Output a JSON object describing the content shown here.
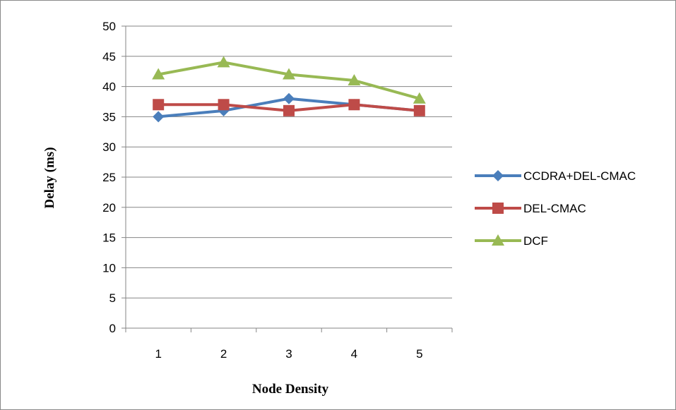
{
  "chart_data": {
    "type": "line",
    "title": "",
    "xlabel": "Node Density",
    "ylabel": "Delay (ms)",
    "categories": [
      "1",
      "2",
      "3",
      "4",
      "5"
    ],
    "ylim": [
      0,
      50
    ],
    "yticks": [
      0,
      5,
      10,
      15,
      20,
      25,
      30,
      35,
      40,
      45,
      50
    ],
    "grid": true,
    "legend_position": "right",
    "series": [
      {
        "name": "CCDRA+DEL-CMAC",
        "values": [
          35,
          36,
          38,
          37,
          36
        ],
        "color": "#4a7ebb",
        "marker": "diamond"
      },
      {
        "name": "DEL-CMAC",
        "values": [
          37,
          37,
          36,
          37,
          36
        ],
        "color": "#be4b48",
        "marker": "square"
      },
      {
        "name": "DCF",
        "values": [
          42,
          44,
          42,
          41,
          38
        ],
        "color": "#98b954",
        "marker": "triangle"
      }
    ]
  }
}
